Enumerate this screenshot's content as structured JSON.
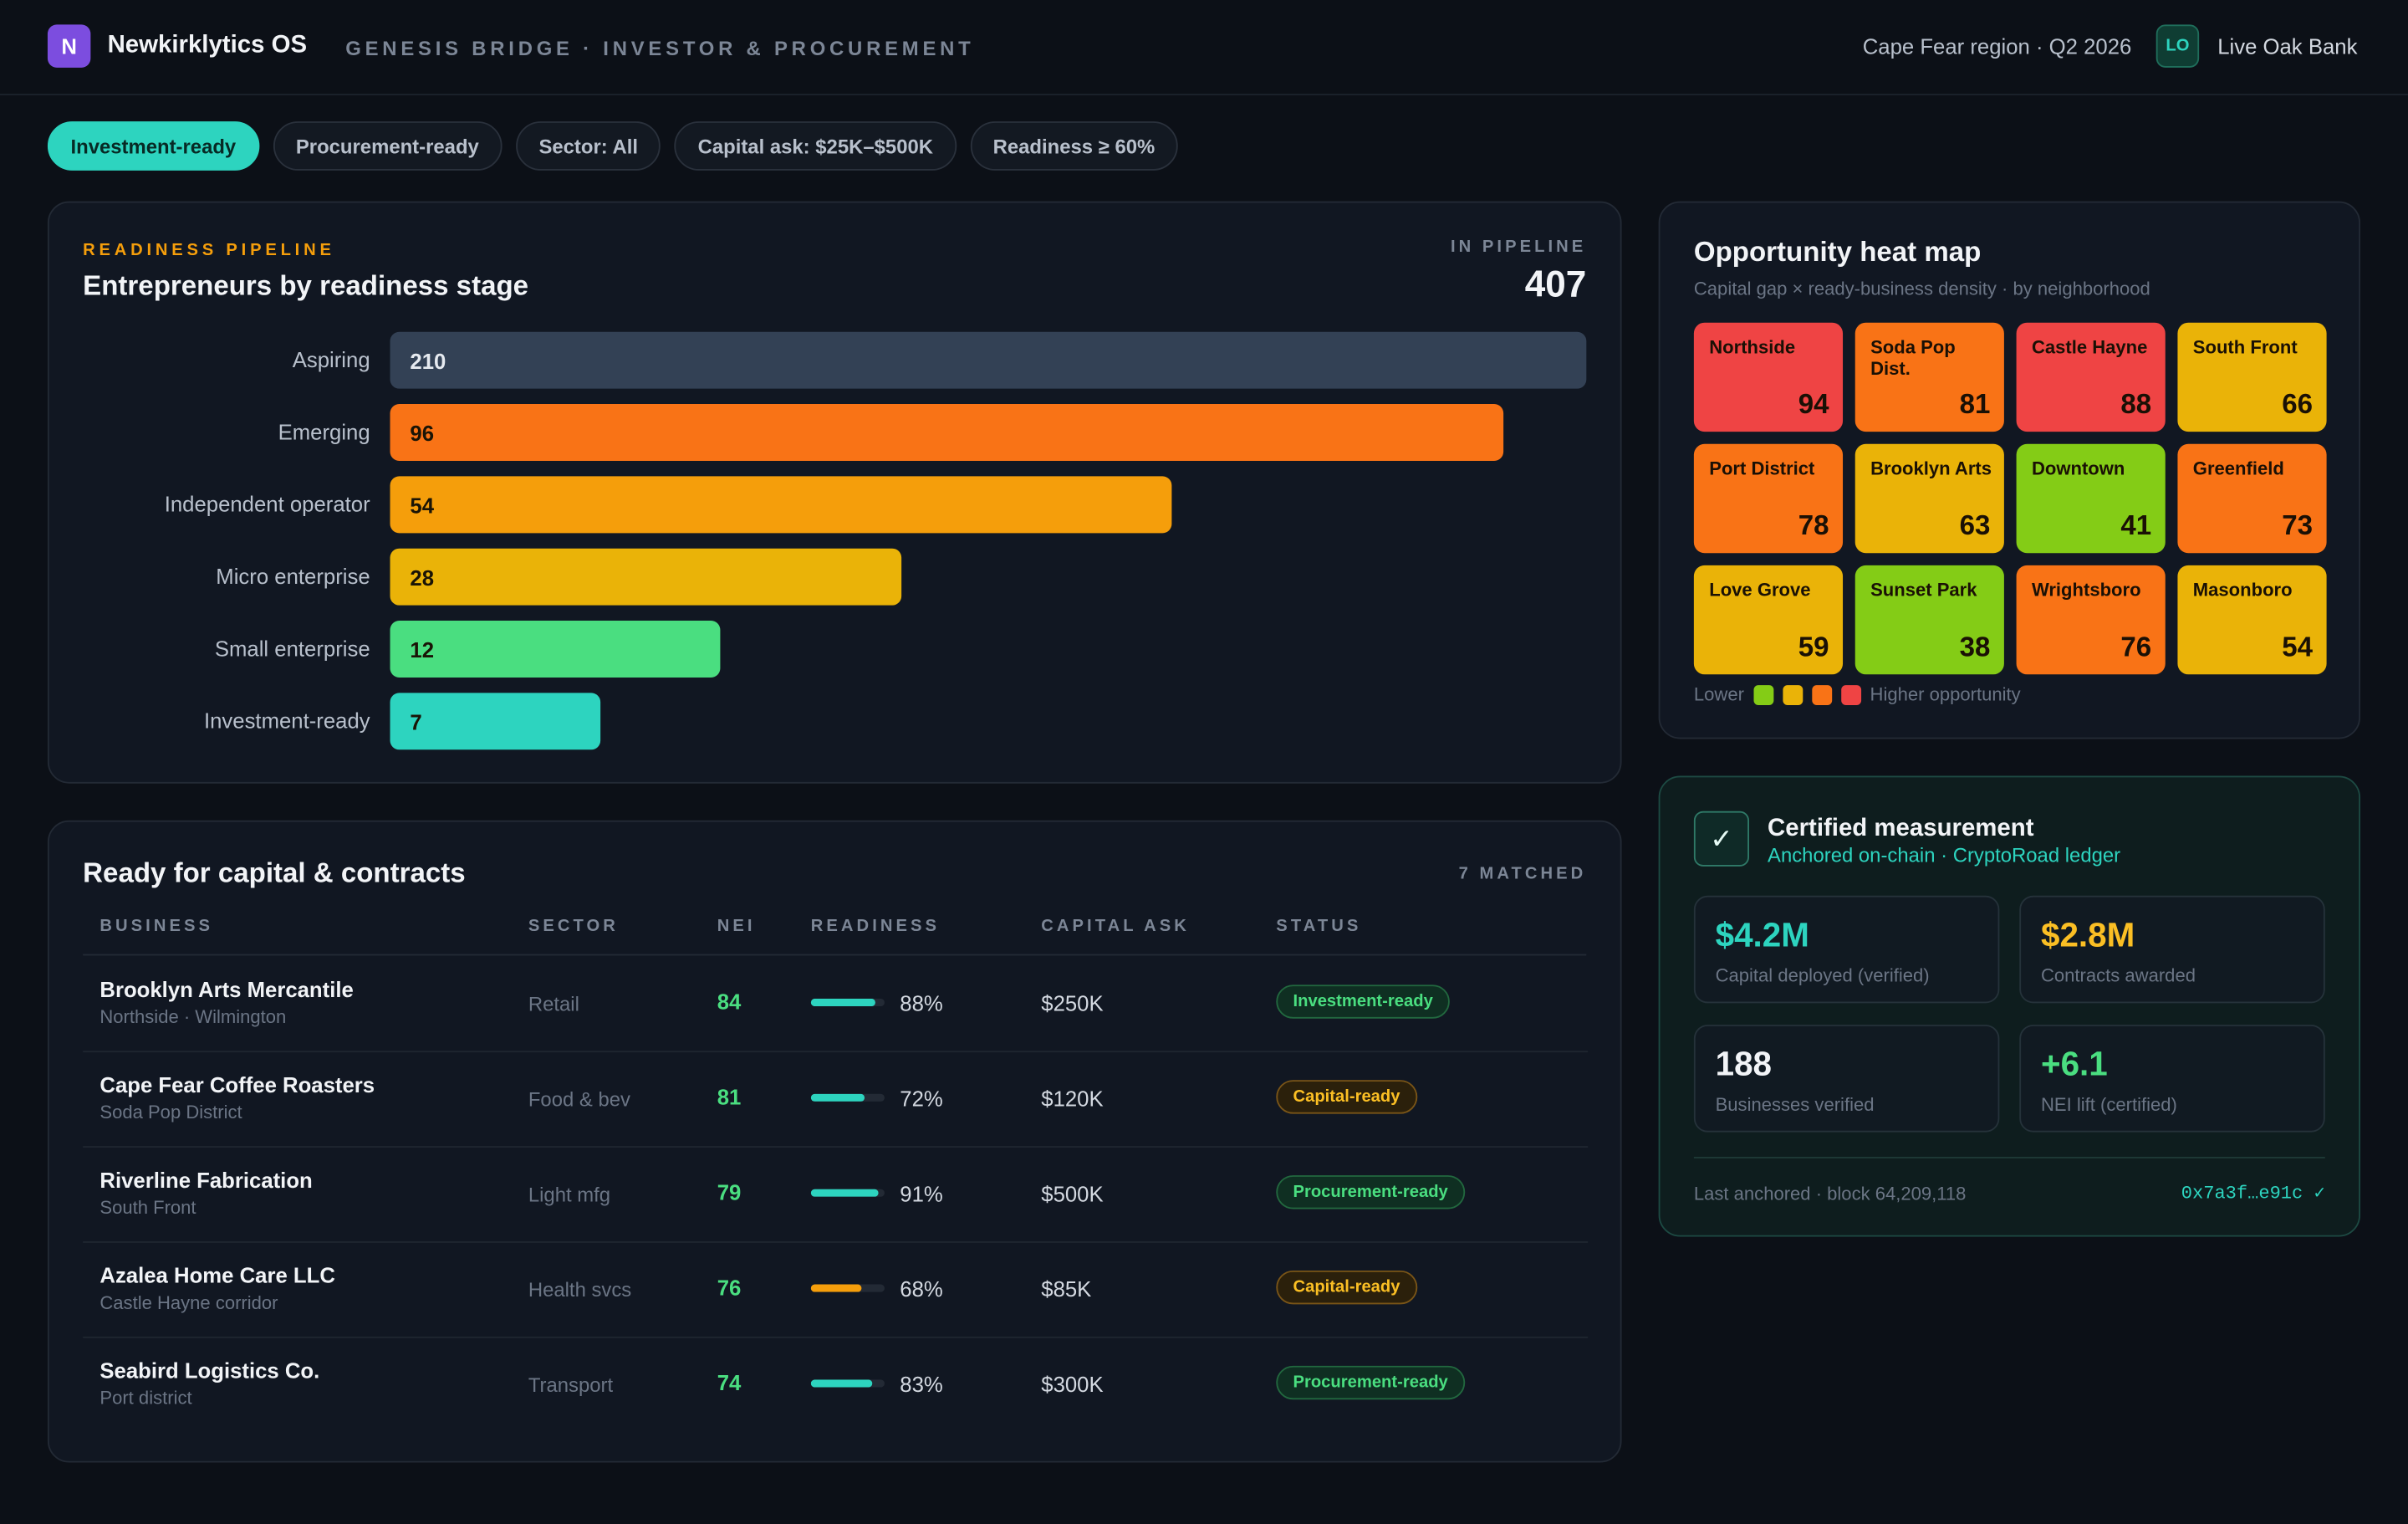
{
  "header": {
    "logo_letter": "N",
    "app_name": "Newkirklytics OS",
    "subtitle": "GENESIS BRIDGE · INVESTOR & PROCUREMENT",
    "region": "Cape Fear region · Q2 2026",
    "user_initials": "LO",
    "user_name": "Live Oak Bank"
  },
  "filters": [
    {
      "label": "Investment-ready",
      "active": true
    },
    {
      "label": "Procurement-ready",
      "active": false
    },
    {
      "label": "Sector: All",
      "active": false
    },
    {
      "label": "Capital ask: $25K–$500K",
      "active": false
    },
    {
      "label": "Readiness ≥ 60%",
      "active": false
    }
  ],
  "pipeline": {
    "eyebrow": "READINESS PIPELINE",
    "title": "Entrepreneurs by readiness stage",
    "count_label": "IN PIPELINE",
    "count": "407"
  },
  "chart_data": {
    "type": "bar",
    "orientation": "horizontal",
    "categories": [
      "Aspiring",
      "Emerging",
      "Independent operator",
      "Micro enterprise",
      "Small enterprise",
      "Investment-ready"
    ],
    "values": [
      210,
      96,
      54,
      28,
      12,
      7
    ],
    "labels": [
      "210",
      "96",
      "54",
      "28",
      "12",
      "7"
    ],
    "colors": [
      "#334155",
      "#f97316",
      "#f59e0b",
      "#eab308",
      "#4ade80",
      "#2dd4bf"
    ],
    "title": "Entrepreneurs by readiness stage"
  },
  "heatmap": {
    "title": "Opportunity heat map",
    "subtitle": "Capital gap × ready-business density · by neighborhood",
    "tiles": [
      {
        "name": "Northside",
        "value": "94",
        "color": "#ef4444"
      },
      {
        "name": "Soda Pop Dist.",
        "value": "81",
        "color": "#f97316"
      },
      {
        "name": "Castle Hayne",
        "value": "88",
        "color": "#ef4444"
      },
      {
        "name": "South Front",
        "value": "66",
        "color": "#eab308"
      },
      {
        "name": "Port District",
        "value": "78",
        "color": "#f97316"
      },
      {
        "name": "Brooklyn Arts",
        "value": "63",
        "color": "#eab308"
      },
      {
        "name": "Downtown",
        "value": "41",
        "color": "#84cc16"
      },
      {
        "name": "Greenfield",
        "value": "73",
        "color": "#f97316"
      },
      {
        "name": "Love Grove",
        "value": "59",
        "color": "#eab308"
      },
      {
        "name": "Sunset Park",
        "value": "38",
        "color": "#84cc16"
      },
      {
        "name": "Wrightsboro",
        "value": "76",
        "color": "#f97316"
      },
      {
        "name": "Masonboro",
        "value": "54",
        "color": "#eab308"
      }
    ],
    "legend_low": "Lower",
    "legend_high": "Higher opportunity",
    "legend_colors": [
      "#84cc16",
      "#eab308",
      "#f97316",
      "#ef4444"
    ]
  },
  "certified": {
    "title": "Certified measurement",
    "subtitle": "Anchored on-chain · CryptoRoad ledger",
    "check_icon": "check-icon",
    "metrics": [
      {
        "value": "$4.2M",
        "label": "Capital deployed (verified)",
        "color": "#2dd4bf"
      },
      {
        "value": "$2.8M",
        "label": "Contracts awarded",
        "color": "#fbbf24"
      },
      {
        "value": "188",
        "label": "Businesses verified",
        "color": "#f2f4f7"
      },
      {
        "value": "+6.1",
        "label": "NEI lift (certified)",
        "color": "#4ade80"
      }
    ],
    "anchor_text": "Last anchored · block 64,209,118",
    "hash": "0x7a3f…e91c ✓"
  },
  "ready_table": {
    "title": "Ready for capital & contracts",
    "matched": "7 MATCHED",
    "columns": [
      "BUSINESS",
      "SECTOR",
      "NEI",
      "READINESS",
      "CAPITAL ASK",
      "STATUS"
    ],
    "rows": [
      {
        "business": "Brooklyn Arts Mercantile",
        "location": "Northside · Wilmington",
        "sector": "Retail",
        "nei": "84",
        "readiness": "88%",
        "readiness_value": 0.88,
        "bar_color": "#2dd4bf",
        "capital_ask": "$250K",
        "status": "Investment-ready",
        "status_kind": "inv"
      },
      {
        "business": "Cape Fear Coffee Roasters",
        "location": "Soda Pop District",
        "sector": "Food & bev",
        "nei": "81",
        "readiness": "72%",
        "readiness_value": 0.72,
        "bar_color": "#2dd4bf",
        "capital_ask": "$120K",
        "status": "Capital-ready",
        "status_kind": "cap"
      },
      {
        "business": "Riverline Fabrication",
        "location": "South Front",
        "sector": "Light mfg",
        "nei": "79",
        "readiness": "91%",
        "readiness_value": 0.91,
        "bar_color": "#2dd4bf",
        "capital_ask": "$500K",
        "status": "Procurement-ready",
        "status_kind": "proc"
      },
      {
        "business": "Azalea Home Care LLC",
        "location": "Castle Hayne corridor",
        "sector": "Health svcs",
        "nei": "76",
        "readiness": "68%",
        "readiness_value": 0.68,
        "bar_color": "#f59e0b",
        "capital_ask": "$85K",
        "status": "Capital-ready",
        "status_kind": "cap"
      },
      {
        "business": "Seabird Logistics Co.",
        "location": "Port district",
        "sector": "Transport",
        "nei": "74",
        "readiness": "83%",
        "readiness_value": 0.83,
        "bar_color": "#2dd4bf",
        "capital_ask": "$300K",
        "status": "Procurement-ready",
        "status_kind": "proc"
      }
    ]
  }
}
